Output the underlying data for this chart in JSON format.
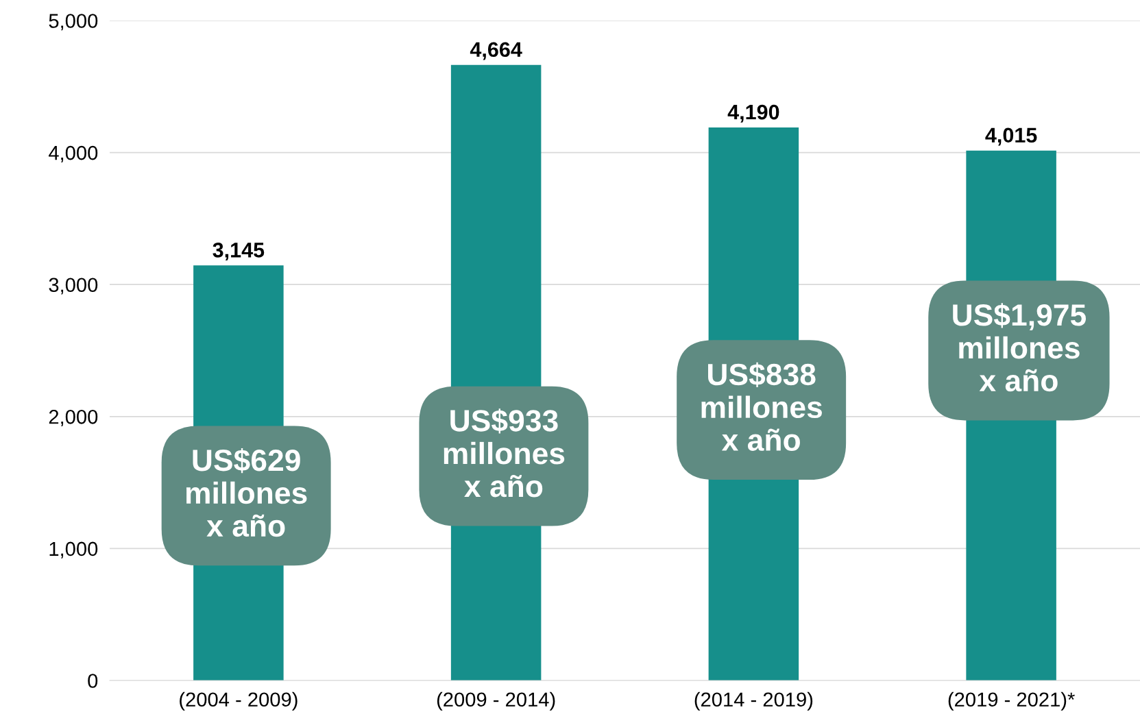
{
  "chart_data": {
    "type": "bar",
    "categories": [
      "(2004 - 2009)",
      "(2009 - 2014)",
      "(2014 - 2019)",
      "(2019 - 2021)*"
    ],
    "values": [
      3145,
      4664,
      4190,
      4015
    ],
    "color": "#168f8b",
    "value_labels": [
      "3,145",
      "4,664",
      "4,190",
      "4,015"
    ],
    "ylim": [
      0,
      5000
    ],
    "yticks": [
      {
        "value": 0,
        "label": "0"
      },
      {
        "value": 1000,
        "label": "1,000"
      },
      {
        "value": 2000,
        "label": "2,000"
      },
      {
        "value": 3000,
        "label": "3,000"
      },
      {
        "value": 4000,
        "label": "4,000"
      },
      {
        "value": 5000,
        "label": "5,000"
      }
    ],
    "grid": "y",
    "annotations": [
      "US$629\nmillones\nx año",
      "US$933\nmillones\nx año",
      "US$838\nmillones\nx año",
      "US$1,975\nmillones\nx año"
    ]
  }
}
